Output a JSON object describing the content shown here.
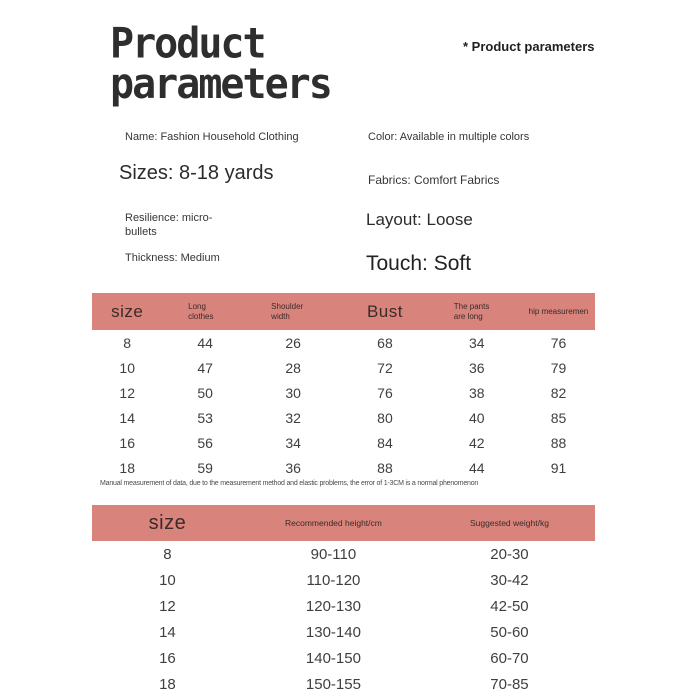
{
  "header": {
    "title_line1": "Product",
    "title_line2": "parameters",
    "note": "* Product parameters"
  },
  "specs": {
    "name": "Name: Fashion Household Clothing",
    "sizes": "Sizes: 8-18 yards",
    "resilience": "Resilience: micro-bullets",
    "thickness": "Thickness: Medium",
    "color": "Color: Available in multiple colors",
    "fabrics": "Fabrics: Comfort Fabrics",
    "layout": "Layout: Loose",
    "touch": "Touch: Soft"
  },
  "size_table": {
    "headers": [
      "size",
      "Long clothes",
      "Shoulder width",
      "Bust",
      "The pants are long",
      "hip measuremen"
    ],
    "rows": [
      [
        "8",
        "44",
        "26",
        "68",
        "34",
        "76"
      ],
      [
        "10",
        "47",
        "28",
        "72",
        "36",
        "79"
      ],
      [
        "12",
        "50",
        "30",
        "76",
        "38",
        "82"
      ],
      [
        "14",
        "53",
        "32",
        "80",
        "40",
        "85"
      ],
      [
        "16",
        "56",
        "34",
        "84",
        "42",
        "88"
      ],
      [
        "18",
        "59",
        "36",
        "88",
        "44",
        "91"
      ]
    ]
  },
  "disclaimer": "Manual measurement of data, due to the measurement method and elastic problems, the error of 1-3CM is a normal phenomenon",
  "fit_table": {
    "headers": [
      "size",
      "Recommended height/cm",
      "Suggested weight/kg"
    ],
    "rows": [
      [
        "8",
        "90-110",
        "20-30"
      ],
      [
        "10",
        "110-120",
        "30-42"
      ],
      [
        "12",
        "120-130",
        "42-50"
      ],
      [
        "14",
        "130-140",
        "50-60"
      ],
      [
        "16",
        "140-150",
        "60-70"
      ],
      [
        "18",
        "150-155",
        "70-85"
      ]
    ]
  },
  "colors": {
    "table_header_bg": "#d8837c",
    "title_text": "#2e2e2e",
    "body_text": "#3f3f3f"
  }
}
